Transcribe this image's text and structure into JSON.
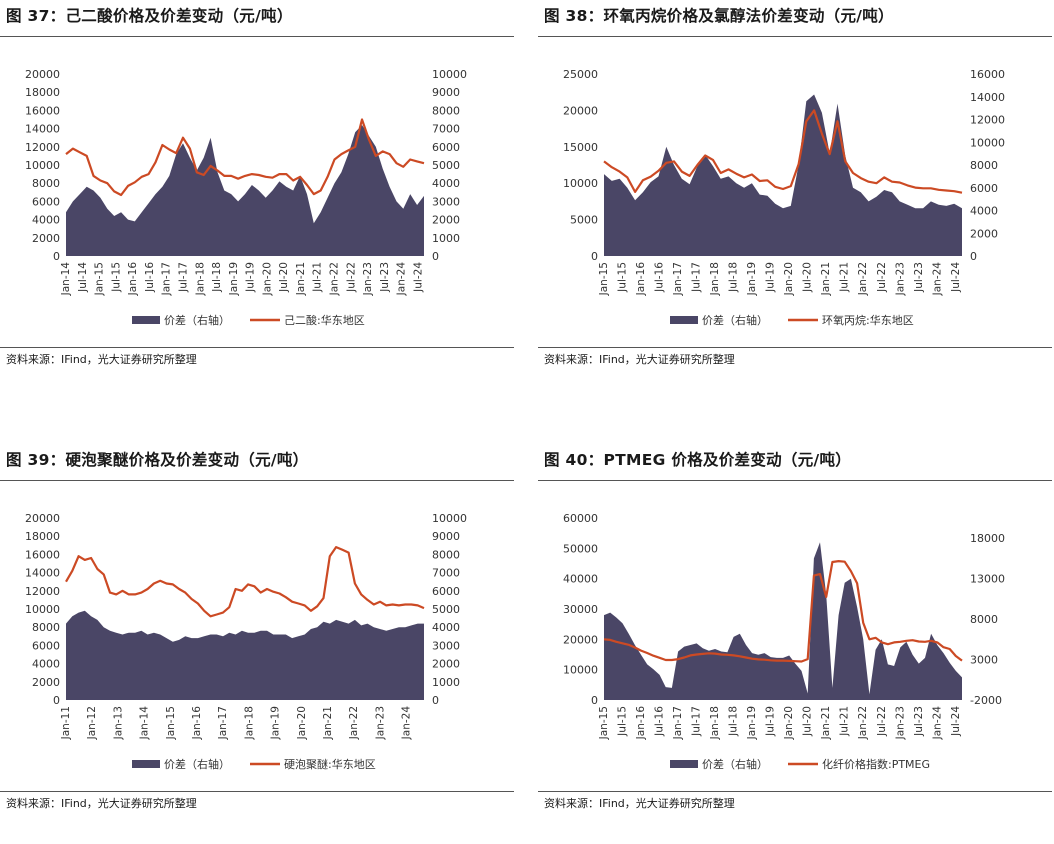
{
  "colors": {
    "diff": "#4a4666",
    "price": "#cc4a24"
  },
  "panels": [
    {
      "title": "图 37：己二酸价格及价差变动（元/吨）",
      "source": "资料来源：IFind，光大证券研究所整理",
      "chart_data": {
        "type": "area+line",
        "x_start": "2014-01",
        "x_end": "2024-09",
        "x_tick_labels": [
          "Jan-14",
          "Jul-14",
          "Jan-15",
          "Jul-15",
          "Jan-16",
          "Jul-16",
          "Jan-17",
          "Jul-17",
          "Jan-18",
          "Jul-18",
          "Jan-19",
          "Jul-19",
          "Jan-20",
          "Jul-20",
          "Jan-21",
          "Jul-21",
          "Jan-22",
          "Jul-22",
          "Jan-23",
          "Jul-23",
          "Jan-24",
          "Jul-24"
        ],
        "y_left": {
          "ticks": [
            0,
            2000,
            4000,
            6000,
            8000,
            10000,
            12000,
            14000,
            16000,
            18000,
            20000
          ],
          "range": [
            0,
            20000
          ]
        },
        "y_right": {
          "ticks": [
            0,
            1000,
            2000,
            3000,
            4000,
            5000,
            6000,
            7000,
            8000,
            9000,
            10000
          ],
          "range": [
            0,
            10000
          ]
        },
        "series": [
          {
            "name": "价差（右轴）",
            "axis": "right",
            "style": "area",
            "values": [
              2400,
              3000,
              3400,
              3800,
              3600,
              3200,
              2600,
              2200,
              2400,
              2000,
              1900,
              2400,
              2900,
              3400,
              3800,
              4400,
              5600,
              6200,
              5400,
              4700,
              5400,
              6500,
              4600,
              3600,
              3400,
              3000,
              3400,
              3900,
              3600,
              3200,
              3600,
              4100,
              3800,
              3600,
              4400,
              3400,
              1800,
              2400,
              3200,
              4000,
              4600,
              5600,
              6800,
              7200,
              6600,
              6000,
              4800,
              3800,
              3000,
              2600,
              3400,
              2800,
              3300
            ]
          },
          {
            "name": "己二酸:华东地区",
            "axis": "left",
            "style": "line",
            "values": [
              11200,
              11800,
              11400,
              11000,
              8800,
              8300,
              8000,
              7100,
              6700,
              7700,
              8100,
              8700,
              9000,
              10300,
              12200,
              11700,
              11300,
              13000,
              11800,
              9200,
              8900,
              9900,
              9400,
              8800,
              8800,
              8500,
              8800,
              9000,
              8900,
              8700,
              8600,
              9000,
              9000,
              8300,
              8700,
              7800,
              6800,
              7200,
              8700,
              10600,
              11200,
              11600,
              12000,
              15000,
              12800,
              11000,
              11500,
              11200,
              10200,
              9800,
              10600,
              10400,
              10200
            ]
          }
        ]
      }
    },
    {
      "title": "图 38：环氧丙烷价格及氯醇法价差变动（元/吨）",
      "source": "资料来源：IFind，光大证券研究所整理",
      "chart_data": {
        "type": "area+line",
        "x_start": "2015-01",
        "x_end": "2024-09",
        "x_tick_labels": [
          "Jan-15",
          "Jul-15",
          "Jan-16",
          "Jul-16",
          "Jan-17",
          "Jul-17",
          "Jan-18",
          "Jul-18",
          "Jan-19",
          "Jul-19",
          "Jan-20",
          "Jul-20",
          "Jan-21",
          "Jul-21",
          "Jan-22",
          "Jul-22",
          "Jan-23",
          "Jul-23",
          "Jan-24",
          "Jul-24"
        ],
        "y_left": {
          "ticks": [
            0,
            5000,
            10000,
            15000,
            20000,
            25000
          ],
          "range": [
            0,
            25000
          ]
        },
        "y_right": {
          "ticks": [
            0,
            2000,
            4000,
            6000,
            8000,
            10000,
            12000,
            14000,
            16000
          ],
          "range": [
            0,
            16000
          ]
        },
        "series": [
          {
            "name": "价差（右轴）",
            "axis": "right",
            "style": "area",
            "values": [
              7200,
              6600,
              6800,
              6000,
              4900,
              5600,
              6500,
              7000,
              9600,
              8000,
              6800,
              6300,
              7900,
              8900,
              7900,
              6800,
              7000,
              6400,
              6000,
              6400,
              5400,
              5300,
              4600,
              4200,
              4400,
              8000,
              13600,
              14200,
              12600,
              9000,
              13400,
              8800,
              6000,
              5600,
              4800,
              5200,
              5800,
              5600,
              4800,
              4500,
              4200,
              4200,
              4800,
              4500,
              4400,
              4600,
              4200
            ]
          },
          {
            "name": "环氧丙烷:华东地区",
            "axis": "left",
            "style": "line",
            "values": [
              13000,
              12200,
              11600,
              10800,
              8800,
              10400,
              10900,
              11700,
              12800,
              13000,
              11600,
              11000,
              12500,
              13800,
              13200,
              11400,
              11900,
              11300,
              10800,
              11200,
              10300,
              10400,
              9500,
              9200,
              9600,
              12600,
              18500,
              20000,
              16800,
              14000,
              18500,
              13000,
              11400,
              10700,
              10200,
              10000,
              10800,
              10200,
              10100,
              9700,
              9400,
              9300,
              9300,
              9100,
              9000,
              8900,
              8700
            ]
          }
        ]
      }
    },
    {
      "title": "图 39：硬泡聚醚价格及价差变动（元/吨）",
      "source": "资料来源：IFind，光大证券研究所整理",
      "chart_data": {
        "type": "area+line",
        "x_start": "2011-01",
        "x_end": "2024-09",
        "x_tick_labels": [
          "Jan-11",
          "Jan-12",
          "Jan-13",
          "Jan-14",
          "Jan-15",
          "Jan-16",
          "Jan-17",
          "Jan-18",
          "Jan-19",
          "Jan-20",
          "Jan-21",
          "Jan-22",
          "Jan-23",
          "Jan-24"
        ],
        "y_left": {
          "ticks": [
            0,
            2000,
            4000,
            6000,
            8000,
            10000,
            12000,
            14000,
            16000,
            18000,
            20000
          ],
          "range": [
            0,
            20000
          ]
        },
        "y_right": {
          "ticks": [
            0,
            1000,
            2000,
            3000,
            4000,
            5000,
            6000,
            7000,
            8000,
            9000,
            10000
          ],
          "range": [
            0,
            10000
          ]
        },
        "series": [
          {
            "name": "价差（右轴）",
            "axis": "right",
            "style": "area",
            "values": [
              4200,
              4600,
              4800,
              4900,
              4600,
              4400,
              4000,
              3800,
              3700,
              3600,
              3700,
              3700,
              3800,
              3600,
              3700,
              3600,
              3400,
              3200,
              3300,
              3500,
              3400,
              3400,
              3500,
              3600,
              3600,
              3500,
              3700,
              3600,
              3800,
              3700,
              3700,
              3800,
              3800,
              3600,
              3600,
              3600,
              3400,
              3500,
              3600,
              3900,
              4000,
              4300,
              4200,
              4400,
              4300,
              4200,
              4400,
              4100,
              4200,
              4000,
              3900,
              3800,
              3900,
              4000,
              4000,
              4100,
              4200,
              4200
            ]
          },
          {
            "name": "硬泡聚醚:华东地区",
            "axis": "left",
            "style": "line",
            "values": [
              13000,
              14200,
              15800,
              15400,
              15600,
              14400,
              13800,
              11800,
              11600,
              12000,
              11600,
              11600,
              11800,
              12200,
              12800,
              13100,
              12800,
              12700,
              12200,
              11800,
              11100,
              10600,
              9800,
              9200,
              9400,
              9600,
              10200,
              12200,
              12000,
              12700,
              12500,
              11800,
              12200,
              11900,
              11700,
              11300,
              10800,
              10600,
              10400,
              9800,
              10300,
              11200,
              15800,
              16800,
              16500,
              16200,
              12800,
              11600,
              11000,
              10500,
              10800,
              10400,
              10500,
              10400,
              10500,
              10500,
              10400,
              10100
            ]
          }
        ]
      }
    },
    {
      "title": "图 40：PTMEG 价格及价差变动（元/吨）",
      "source": "资料来源：IFind，光大证券研究所整理",
      "chart_data": {
        "type": "area+line",
        "x_start": "2015-01",
        "x_end": "2024-09",
        "x_tick_labels": [
          "Jan-15",
          "Jul-15",
          "Jan-16",
          "Jul-16",
          "Jan-17",
          "Jul-17",
          "Jan-18",
          "Jul-18",
          "Jan-19",
          "Jul-19",
          "Jan-20",
          "Jul-20",
          "Jan-21",
          "Jul-21",
          "Jan-22",
          "Jul-22",
          "Jan-23",
          "Jul-23",
          "Jan-24",
          "Jul-24"
        ],
        "y_left": {
          "ticks": [
            0,
            10000,
            20000,
            30000,
            40000,
            50000,
            60000
          ],
          "range": [
            0,
            60000
          ]
        },
        "y_right": {
          "ticks": [
            -2000,
            3000,
            8000,
            13000,
            18000
          ],
          "range": [
            -2000,
            20500
          ]
        },
        "series": [
          {
            "name": "价差（右轴）",
            "axis": "right",
            "style": "area",
            "values": [
              8500,
              8800,
              8200,
              7500,
              6200,
              4800,
              3600,
              2400,
              1800,
              1100,
              -400,
              -500,
              4000,
              4600,
              4800,
              5000,
              4400,
              4100,
              4300,
              4000,
              3900,
              5800,
              6200,
              4800,
              3800,
              3600,
              3800,
              3300,
              3200,
              3200,
              3500,
              2500,
              1600,
              -1200,
              15500,
              17500,
              11000,
              -500,
              8500,
              12500,
              13000,
              9500,
              5500,
              -1300,
              4200,
              5500,
              2400,
              2200,
              4500,
              5200,
              3600,
              2500,
              3200,
              6200,
              4800,
              3800,
              2600,
              1600,
              800
            ]
          },
          {
            "name": "化纤价格指数:PTMEG",
            "axis": "left",
            "style": "line",
            "values": [
              20000,
              19800,
              19200,
              18700,
              18200,
              17300,
              16300,
              15500,
              14600,
              13900,
              13200,
              13200,
              13500,
              14000,
              14700,
              15000,
              15200,
              15400,
              15300,
              15000,
              14900,
              14700,
              14400,
              14000,
              13600,
              13400,
              13300,
              13100,
              13000,
              13000,
              12900,
              12800,
              12700,
              13500,
              41000,
              41500,
              34000,
              45500,
              45800,
              45600,
              42500,
              38500,
              25500,
              20000,
              20500,
              19000,
              18400,
              19000,
              19200,
              19500,
              19700,
              19300,
              19200,
              19500,
              19000,
              17400,
              16800,
              14500,
              13000
            ]
          }
        ]
      }
    }
  ]
}
